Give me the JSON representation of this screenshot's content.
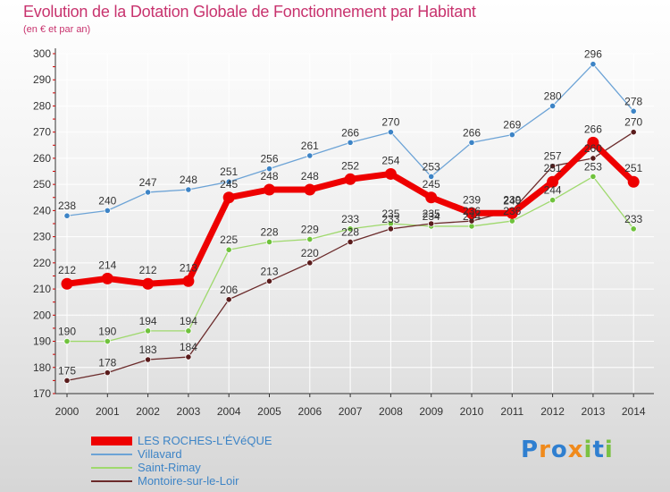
{
  "header": {
    "title": "Evolution de la Dotation Globale de Fonctionnement par Habitant",
    "subtitle": "(en € et par an)"
  },
  "logo": {
    "text": "Proxiti",
    "letters": [
      "P",
      "r",
      "o",
      "x",
      "i",
      "t",
      "i"
    ]
  },
  "colors": {
    "title": "#c8336e",
    "grid": "#ffffff",
    "axis": "#333333",
    "tick_text": "#333333",
    "label_text": "#333333"
  },
  "chart_data": {
    "type": "line",
    "title": "Evolution de la Dotation Globale de Fonctionnement par Habitant",
    "subtitle": "(en € et par an)",
    "xlabel": "",
    "ylabel": "",
    "x": [
      2000,
      2001,
      2002,
      2003,
      2004,
      2005,
      2006,
      2007,
      2008,
      2009,
      2010,
      2011,
      2012,
      2013,
      2014
    ],
    "x_tick_labels": [
      "2000",
      "2001",
      "2002",
      "2003",
      "2004",
      "2005",
      "2006",
      "2007",
      "2008",
      "2009",
      "2010",
      "2011",
      "2012",
      "2013",
      "2014"
    ],
    "ylim": [
      170,
      300
    ],
    "y_ticks": [
      170,
      180,
      190,
      200,
      210,
      220,
      230,
      240,
      250,
      260,
      270,
      280,
      290,
      300
    ],
    "grid": true,
    "legend_position": "bottom-left",
    "series": [
      {
        "name": "Villavard",
        "color": "#6ca3d6",
        "marker_color": "#3d84c6",
        "values": [
          238,
          240,
          247,
          248,
          251,
          256,
          261,
          266,
          270,
          253,
          266,
          269,
          280,
          296,
          278
        ]
      },
      {
        "name": "Saint-Rimay",
        "color": "#9fd96d",
        "marker_color": "#6fc23c",
        "values": [
          190,
          190,
          194,
          194,
          225,
          228,
          229,
          233,
          235,
          234,
          234,
          236,
          244,
          253,
          233
        ]
      },
      {
        "name": "Montoire-sur-le-Loir",
        "color": "#6b2b2b",
        "marker_color": "#5a1c1c",
        "values": [
          175,
          178,
          183,
          184,
          206,
          213,
          220,
          228,
          233,
          235,
          236,
          240,
          257,
          260,
          270
        ]
      },
      {
        "name": "LES ROCHES-L'ÉVéQUE",
        "color": "#ee0000",
        "marker_color": "#ee0000",
        "values": [
          212,
          214,
          212,
          213,
          245,
          248,
          248,
          252,
          254,
          245,
          239,
          239,
          251,
          266,
          251
        ]
      }
    ],
    "point_labels": [
      {
        "series": "Villavard",
        "values": [
          "238",
          "240",
          "247",
          "248",
          "251",
          "256",
          "261",
          "266",
          "270",
          "253",
          "266",
          "269",
          "280",
          "296",
          "278"
        ]
      },
      {
        "series": "Saint-Rimay",
        "values": [
          "190",
          "190",
          "194",
          "194",
          "225",
          "228",
          "229",
          "233",
          "235",
          "234",
          "234",
          "236",
          "244",
          "253",
          "233"
        ]
      },
      {
        "series": "Montoire-sur-le-Loir",
        "values": [
          "175",
          "178",
          "183",
          "184",
          "206",
          "213",
          "220",
          "228",
          "233",
          "235",
          "236",
          "240",
          "257",
          "260",
          "270"
        ]
      },
      {
        "series": "LES ROCHES-L'ÉVéQUE",
        "values": [
          "212",
          "214",
          "212",
          "213",
          "245",
          "248",
          "248",
          "252",
          "254",
          "245",
          "239",
          "239",
          "251",
          "266",
          "251"
        ]
      }
    ]
  },
  "legend": {
    "items": [
      {
        "label": "LES ROCHES-L'ÉVéQUE",
        "color": "#ee0000",
        "text_color": "#3d84c6"
      },
      {
        "label": "Villavard",
        "color": "#6ca3d6",
        "text_color": "#3d84c6"
      },
      {
        "label": "Saint-Rimay",
        "color": "#9fd96d",
        "text_color": "#3d84c6"
      },
      {
        "label": "Montoire-sur-le-Loir",
        "color": "#6b2b2b",
        "text_color": "#3d84c6"
      }
    ]
  }
}
